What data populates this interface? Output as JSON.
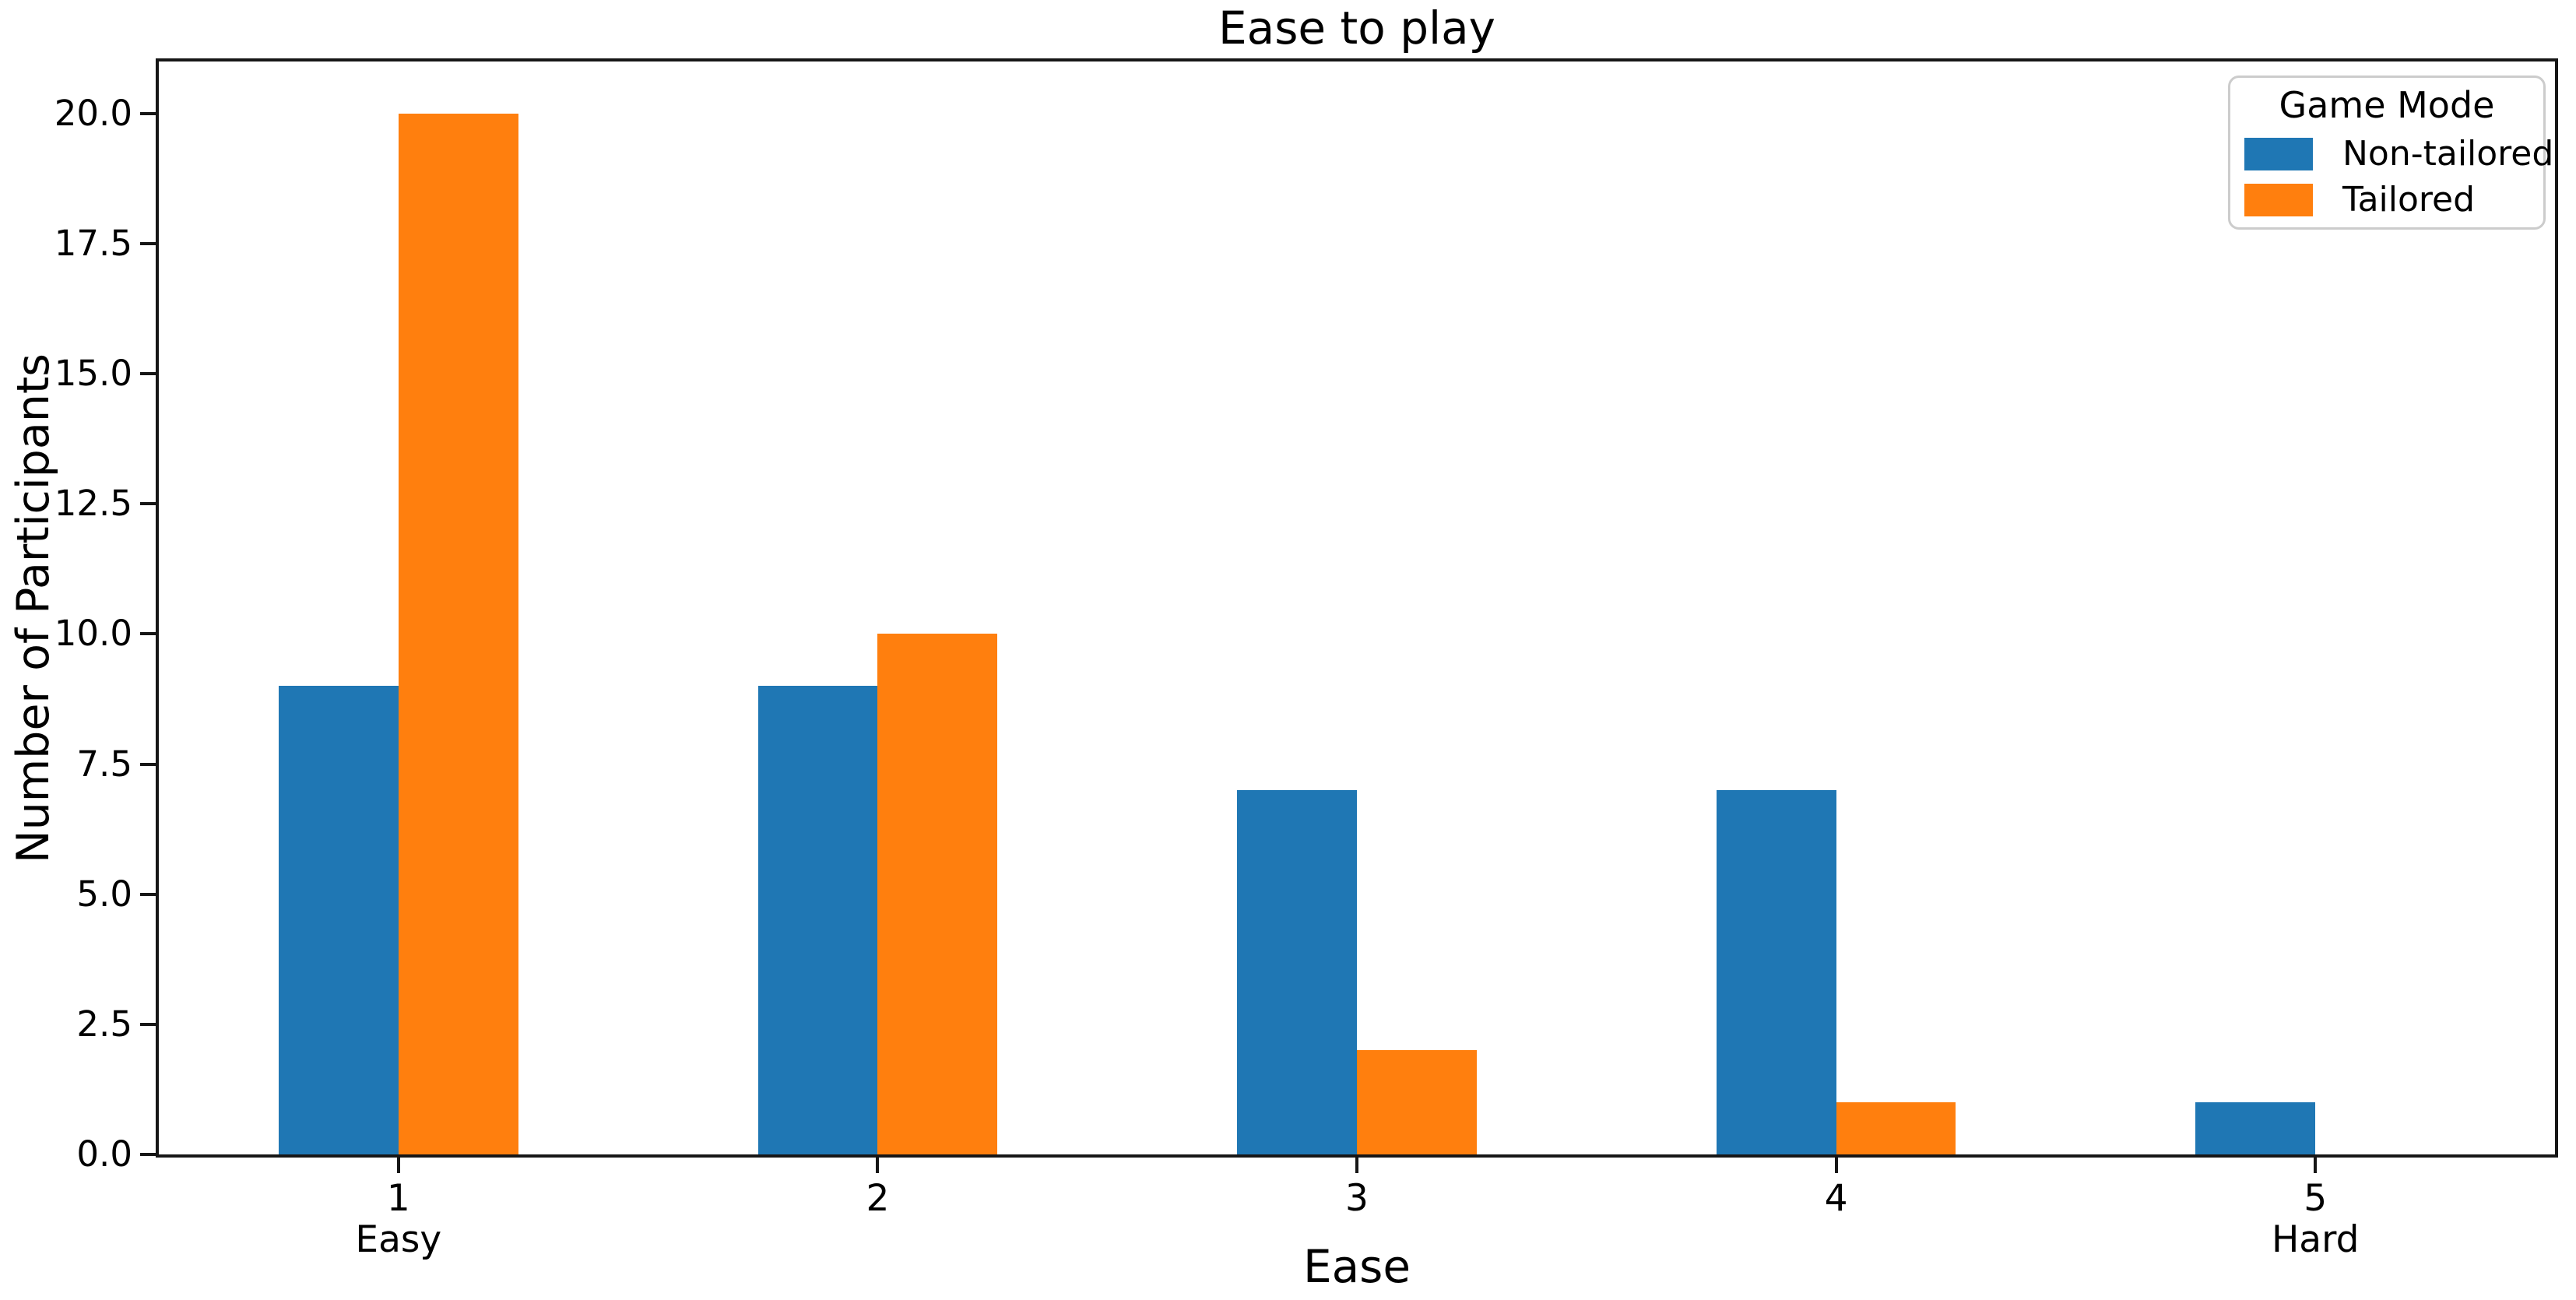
{
  "figure": {
    "background": "#ffffff",
    "axis_color": "#161616",
    "text_color": "#000000"
  },
  "chart_data": {
    "type": "bar",
    "title": "Ease to play",
    "xlabel": "Ease",
    "ylabel": "Number of Participants",
    "categories": [
      "1",
      "2",
      "3",
      "4",
      "5"
    ],
    "category_sublabels": [
      "Easy",
      "",
      "",
      "",
      "Hard"
    ],
    "series": [
      {
        "name": "Non-tailored",
        "color": "#1f77b4",
        "values": [
          9,
          9,
          7,
          7,
          1
        ]
      },
      {
        "name": "Tailored",
        "color": "#ff7f0e",
        "values": [
          20,
          10,
          2,
          1,
          0
        ]
      }
    ],
    "ylim": [
      0,
      21
    ],
    "yticks": [
      0,
      2.5,
      5,
      7.5,
      10,
      12.5,
      15,
      17.5,
      20
    ],
    "ytick_labels": [
      "0.0",
      "2.5",
      "5.0",
      "7.5",
      "10.0",
      "12.5",
      "15.0",
      "17.5",
      "20.0"
    ],
    "legend": {
      "title": "Game Mode",
      "position": "upper right"
    },
    "grid": false,
    "bar_group_width_fraction": 0.5
  }
}
